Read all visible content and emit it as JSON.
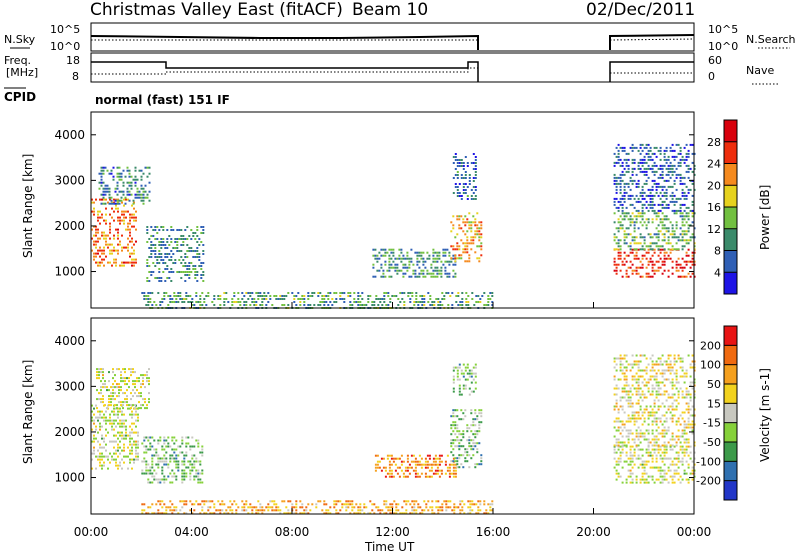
{
  "header": {
    "station": "Christmas Valley East (fitACF)",
    "beam": "Beam 10",
    "date": "02/Dec/2011"
  },
  "status_panels": {
    "nsky_label": "N.Sky",
    "nsky_ticks": [
      "10^5",
      "10^0"
    ],
    "nsearch_label": "N.Search",
    "nsearch_ticks": [
      "10^5",
      "10^0"
    ],
    "freq_label_line1": "Freq.",
    "freq_label_line2": "[MHz]",
    "freq_ticks": [
      "18",
      "8"
    ],
    "nave_label": "Nave",
    "nave_ticks": [
      "60",
      "0"
    ],
    "cpid_label": "CPID",
    "cpid_text": "normal (fast) 151 IF"
  },
  "chart_data": [
    {
      "type": "heatmap",
      "name": "power",
      "ylabel": "Slant Range [km]",
      "yticks": [
        1000,
        2000,
        3000,
        4000
      ],
      "ylim": [
        200,
        4500
      ],
      "xlim": [
        0,
        24
      ],
      "colorbar_label": "Power [dB]",
      "colorbar_ticks": [
        "4",
        "8",
        "12",
        "16",
        "20",
        "24",
        "28"
      ],
      "colorbar_colors": [
        "#1e14e6",
        "#2f5fb5",
        "#3a8a6a",
        "#72c040",
        "#e6d21e",
        "#f58a1e",
        "#ee2d0c",
        "#d8000c"
      ],
      "regions": [
        {
          "t0": 0.0,
          "t1": 1.8,
          "r0": 1100,
          "r1": 2600,
          "level": 0.72
        },
        {
          "t0": 0.3,
          "t1": 2.3,
          "r0": 2500,
          "r1": 3300,
          "level": 0.28
        },
        {
          "t0": 2.2,
          "t1": 4.5,
          "r0": 800,
          "r1": 2000,
          "level": 0.3
        },
        {
          "t0": 2.0,
          "t1": 16.0,
          "r0": 200,
          "r1": 550,
          "level": 0.35
        },
        {
          "t0": 11.2,
          "t1": 14.5,
          "r0": 900,
          "r1": 1500,
          "level": 0.3
        },
        {
          "t0": 14.3,
          "t1": 15.5,
          "r0": 1200,
          "r1": 2300,
          "level": 0.62
        },
        {
          "t0": 14.4,
          "t1": 15.3,
          "r0": 2600,
          "r1": 3600,
          "level": 0.22
        },
        {
          "t0": 20.8,
          "t1": 24.0,
          "r0": 900,
          "r1": 1500,
          "level": 0.85
        },
        {
          "t0": 20.8,
          "t1": 24.0,
          "r0": 1500,
          "r1": 2300,
          "level": 0.4
        },
        {
          "t0": 20.8,
          "t1": 24.0,
          "r0": 2300,
          "r1": 3800,
          "level": 0.2
        }
      ]
    },
    {
      "type": "heatmap",
      "name": "velocity",
      "ylabel": "Slant Range [km]",
      "yticks": [
        1000,
        2000,
        3000,
        4000
      ],
      "ylim": [
        200,
        4500
      ],
      "xlim": [
        0,
        24
      ],
      "xlabel": "Time UT",
      "xticks": [
        "00:00",
        "04:00",
        "08:00",
        "12:00",
        "16:00",
        "20:00",
        "00:00"
      ],
      "colorbar_label": "Velocity [m s-1]",
      "colorbar_ticks": [
        "200",
        "100",
        "50",
        "15",
        "-15",
        "-50",
        "-100",
        "-200"
      ],
      "colorbar_colors": [
        "#2236c8",
        "#2f70b0",
        "#3c9a4a",
        "#86d13a",
        "#c8c8c0",
        "#f2d21e",
        "#f5a01e",
        "#f06a10",
        "#e81414"
      ],
      "regions": [
        {
          "t0": 0.0,
          "t1": 1.9,
          "r0": 1200,
          "r1": 2600,
          "level": 0.5
        },
        {
          "t0": 0.2,
          "t1": 2.3,
          "r0": 2500,
          "r1": 3400,
          "level": 0.5
        },
        {
          "t0": 2.0,
          "t1": 4.4,
          "r0": 900,
          "r1": 1900,
          "level": 0.37
        },
        {
          "t0": 2.0,
          "t1": 16.0,
          "r0": 200,
          "r1": 500,
          "level": 0.7
        },
        {
          "t0": 11.3,
          "t1": 14.5,
          "r0": 1000,
          "r1": 1500,
          "level": 0.78
        },
        {
          "t0": 14.3,
          "t1": 15.5,
          "r0": 1200,
          "r1": 2500,
          "level": 0.37
        },
        {
          "t0": 14.4,
          "t1": 15.3,
          "r0": 2800,
          "r1": 3500,
          "level": 0.37
        },
        {
          "t0": 20.8,
          "t1": 24.0,
          "r0": 900,
          "r1": 1700,
          "level": 0.5
        },
        {
          "t0": 20.8,
          "t1": 24.0,
          "r0": 1700,
          "r1": 3700,
          "level": 0.55
        }
      ]
    }
  ]
}
